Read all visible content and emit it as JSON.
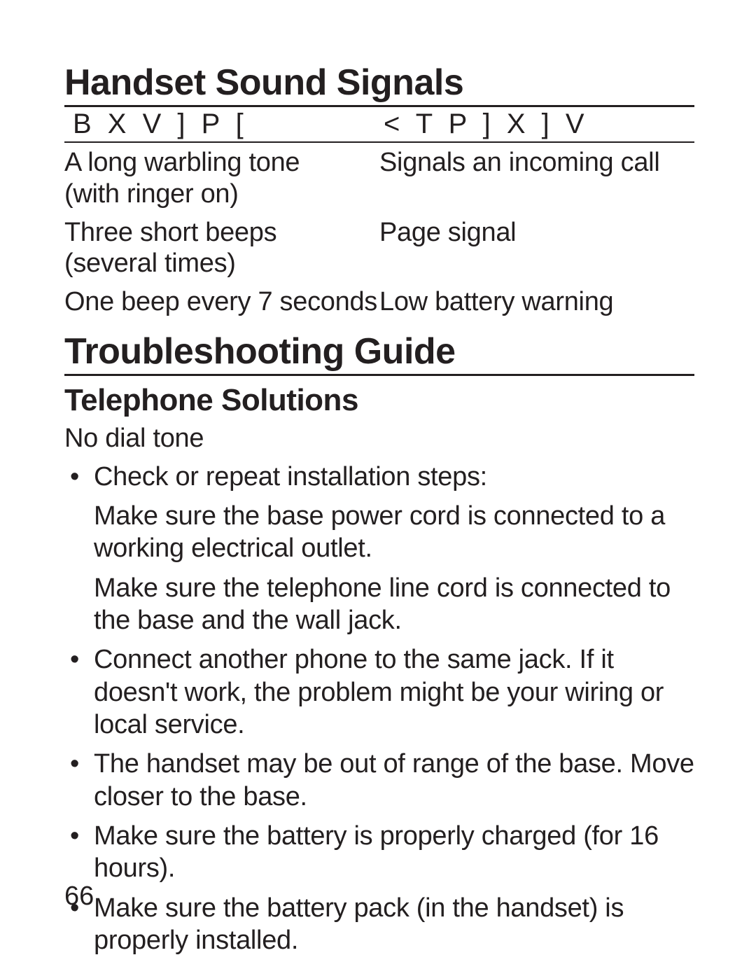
{
  "handset_signals": {
    "title": "Handset Sound Signals",
    "header_left": "B X V ] P [",
    "header_right": "< T P ] X ] V",
    "rows": [
      {
        "signal": "A long warbling tone\n(with ringer on)",
        "meaning": "Signals an incoming call"
      },
      {
        "signal": "Three short beeps\n(several times)",
        "meaning": "Page signal"
      },
      {
        "signal": "One beep every 7 seconds",
        "meaning": "Low battery warning"
      }
    ]
  },
  "troubleshooting": {
    "title": "Troubleshooting Guide",
    "section": "Telephone Solutions",
    "issue": "No dial tone",
    "bullets": [
      {
        "text": "Check or repeat installation steps:",
        "subs": [
          "Make sure the base power cord is connected to a working electrical outlet.",
          "Make sure the telephone line cord is connected to the base and the wall jack."
        ]
      },
      {
        "text": "Connect another phone to the same jack. If it doesn't work, the problem might be your wiring or local service."
      },
      {
        "text": "The handset may be out of range of the base. Move closer to the base."
      },
      {
        "text": "Make sure the battery is properly charged (for 16 hours)."
      },
      {
        "text": "Make sure the battery pack (in the handset) is properly installed."
      }
    ]
  },
  "page_number": "66",
  "colors": {
    "text": "#231f20",
    "bg": "#ffffff"
  }
}
